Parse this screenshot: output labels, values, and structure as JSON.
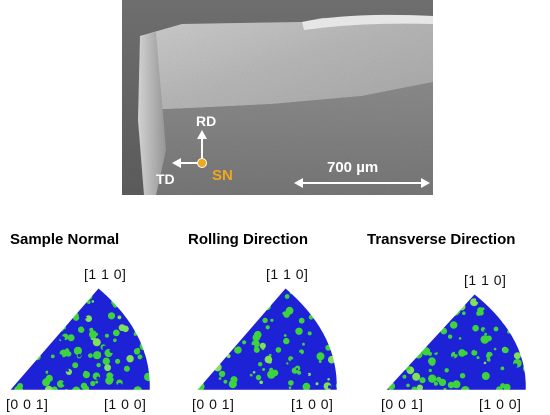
{
  "micrograph": {
    "axis_rd": "RD",
    "axis_td": "TD",
    "axis_sn": "SN",
    "scale_bar_label": "700 µm",
    "colors": {
      "sn_marker": "#f0a81c",
      "axis_text": "#ffffff"
    }
  },
  "figures": [
    {
      "title": "Sample Normal",
      "top_label": "[1 1 0]",
      "left_label": "[0 0 1]",
      "right_label": "[1 0 0]",
      "seed": 11,
      "green_fraction": 0.55
    },
    {
      "title": "Rolling Direction",
      "top_label": "[1 1 0]",
      "left_label": "[0 0 1]",
      "right_label": "[1 0 0]",
      "seed": 23,
      "green_fraction": 0.45
    },
    {
      "title": "Transverse Direction",
      "top_label": "[1 1 0]",
      "left_label": "[0 0 1]",
      "right_label": "[1 0 0]",
      "seed": 37,
      "green_fraction": 0.5
    }
  ],
  "colors": {
    "ipf_blue": "#1e22d6",
    "ipf_green": "#3cd33c",
    "ipf_light_green": "#7fe05a"
  }
}
